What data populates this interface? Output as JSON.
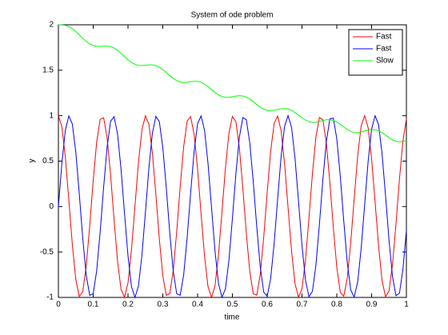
{
  "chart_data": {
    "type": "line",
    "title": "System of ode problem",
    "x_label": "time",
    "y_label": "y",
    "x": [
      0,
      0.01,
      0.02,
      0.03,
      0.04,
      0.05,
      0.06,
      0.07,
      0.08,
      0.09,
      0.1,
      0.11,
      0.12,
      0.13,
      0.14,
      0.15,
      0.16,
      0.17,
      0.18,
      0.19,
      0.2,
      0.21,
      0.22,
      0.23,
      0.24,
      0.25,
      0.26,
      0.27,
      0.28,
      0.29,
      0.3,
      0.31,
      0.32,
      0.33,
      0.34,
      0.35,
      0.36,
      0.37,
      0.38,
      0.39,
      0.4,
      0.41,
      0.42,
      0.43,
      0.44,
      0.45,
      0.46,
      0.47,
      0.48,
      0.49,
      0.5,
      0.51,
      0.52,
      0.53,
      0.54,
      0.55,
      0.56,
      0.57,
      0.58,
      0.59,
      0.6,
      0.61,
      0.62,
      0.63,
      0.64,
      0.65,
      0.66,
      0.67,
      0.68,
      0.69,
      0.7,
      0.71,
      0.72,
      0.73,
      0.74,
      0.75,
      0.76,
      0.77,
      0.78,
      0.79,
      0.8,
      0.81,
      0.82,
      0.83,
      0.84,
      0.85,
      0.86,
      0.87,
      0.88,
      0.89,
      0.9,
      0.91,
      0.92,
      0.93,
      0.94,
      0.95,
      0.96,
      0.97,
      0.98,
      0.99,
      1
    ],
    "series": [
      {
        "name": "Fast",
        "color": "#ff0000",
        "values": [
          1,
          0.878,
          0.54,
          0.071,
          -0.416,
          -0.801,
          -0.99,
          -0.936,
          -0.654,
          -0.211,
          0.284,
          0.709,
          0.96,
          0.977,
          0.754,
          0.347,
          -0.146,
          -0.602,
          -0.911,
          -0.997,
          -0.839,
          -0.475,
          0.004,
          0.483,
          0.844,
          0.998,
          0.907,
          0.594,
          0.137,
          -0.355,
          -0.76,
          -0.978,
          -0.958,
          -0.703,
          -0.275,
          0.22,
          0.66,
          0.94,
          0.989,
          0.796,
          0.408,
          -0.08,
          -0.548,
          -0.882,
          -1,
          -0.873,
          -0.533,
          -0.062,
          0.424,
          0.806,
          0.991,
          0.933,
          0.647,
          0.202,
          -0.292,
          -0.715,
          -0.962,
          -0.975,
          -0.748,
          -0.338,
          0.154,
          0.609,
          0.915,
          0.996,
          0.834,
          0.468,
          -0.013,
          -0.491,
          -0.849,
          -0.998,
          -0.904,
          -0.588,
          -0.128,
          0.363,
          0.765,
          0.98,
          0.955,
          0.696,
          0.267,
          -0.228,
          -0.667,
          -0.943,
          -0.987,
          -0.791,
          -0.4,
          0.088,
          0.556,
          0.887,
          1,
          0.869,
          0.525,
          0.053,
          -0.432,
          -0.812,
          -0.992,
          -0.929,
          -0.64,
          -0.194,
          0.3,
          0.722,
          0.965
        ]
      },
      {
        "name": "Fast",
        "color": "#0000ff",
        "values": [
          0,
          0.479,
          0.841,
          0.997,
          0.909,
          0.598,
          0.141,
          -0.351,
          -0.757,
          -0.978,
          -0.959,
          -0.706,
          -0.279,
          0.215,
          0.657,
          0.938,
          0.989,
          0.798,
          0.412,
          -0.075,
          -0.544,
          -0.88,
          -1,
          -0.875,
          -0.537,
          -0.066,
          0.42,
          0.804,
          0.991,
          0.935,
          0.65,
          0.206,
          -0.288,
          -0.712,
          -0.961,
          -0.976,
          -0.751,
          -0.342,
          0.15,
          0.606,
          0.913,
          0.997,
          0.837,
          0.472,
          -0.009,
          -0.487,
          -0.846,
          -0.998,
          -0.906,
          -0.592,
          -0.132,
          0.359,
          0.763,
          0.979,
          0.956,
          0.699,
          0.271,
          -0.223,
          -0.663,
          -0.941,
          -0.988,
          -0.793,
          -0.404,
          0.084,
          0.552,
          0.884,
          1,
          0.871,
          0.529,
          0.057,
          -0.428,
          -0.809,
          -0.992,
          -0.932,
          -0.644,
          -0.198,
          0.296,
          0.718,
          0.964,
          0.974,
          0.745,
          0.334,
          -0.158,
          -0.612,
          -0.917,
          -0.996,
          -0.831,
          -0.462,
          0.018,
          0.495,
          0.851,
          0.999,
          0.902,
          0.584,
          0.124,
          -0.368,
          -0.768,
          -0.981,
          -0.954,
          -0.692,
          -0.263
        ]
      },
      {
        "name": "Slow",
        "color": "#00ff00",
        "values": [
          2,
          1.999,
          1.994,
          1.981,
          1.958,
          1.926,
          1.89,
          1.851,
          1.816,
          1.789,
          1.772,
          1.764,
          1.763,
          1.765,
          1.765,
          1.759,
          1.744,
          1.719,
          1.686,
          1.651,
          1.615,
          1.586,
          1.565,
          1.554,
          1.552,
          1.555,
          1.559,
          1.559,
          1.552,
          1.534,
          1.508,
          1.475,
          1.44,
          1.41,
          1.386,
          1.37,
          1.365,
          1.368,
          1.374,
          1.378,
          1.378,
          1.368,
          1.347,
          1.32,
          1.288,
          1.256,
          1.229,
          1.21,
          1.202,
          1.201,
          1.208,
          1.215,
          1.22,
          1.216,
          1.204,
          1.182,
          1.154,
          1.122,
          1.093,
          1.071,
          1.058,
          1.055,
          1.06,
          1.068,
          1.077,
          1.079,
          1.074,
          1.059,
          1.034,
          1.005,
          0.976,
          0.951,
          0.934,
          0.927,
          0.928,
          0.937,
          0.947,
          0.955,
          0.956,
          0.947,
          0.929,
          0.903,
          0.875,
          0.848,
          0.826,
          0.815,
          0.813,
          0.82,
          0.831,
          0.841,
          0.847,
          0.845,
          0.833,
          0.812,
          0.786,
          0.759,
          0.735,
          0.719,
          0.713,
          0.715,
          0.725
        ]
      }
    ],
    "xlim": [
      0,
      1
    ],
    "xticks": [
      0,
      0.1,
      0.2,
      0.3,
      0.4,
      0.5,
      0.6,
      0.7,
      0.8,
      0.9,
      1
    ],
    "ylim": [
      -1,
      2
    ],
    "yticks": [
      -1,
      -0.5,
      0,
      0.5,
      1,
      1.5,
      2
    ],
    "legend": "top-right"
  }
}
